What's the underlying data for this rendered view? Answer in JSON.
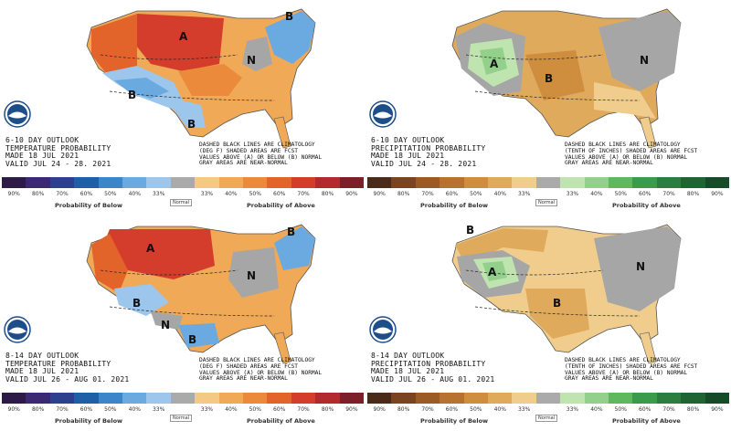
{
  "panels": [
    {
      "id": "temp-6-10",
      "outlook_title": "6-10 DAY OUTLOOK",
      "variable": "TEMPERATURE PROBABILITY",
      "made": "MADE   18 JUL 2021",
      "valid": "VALID   JUL 24 - 28. 2021",
      "notes": [
        "DASHED BLACK LINES ARE CLIMATOLOGY",
        "(DEG F) SHADED AREAS ARE FCST",
        "VALUES ABOVE (A) OR BELOW (B) NORMAL",
        "GRAY AREAS ARE NEAR-NORMAL"
      ],
      "regions": {
        "a1": "A",
        "b1": "B",
        "b2": "B",
        "n1": "N",
        "b3": "B"
      }
    },
    {
      "id": "precip-6-10",
      "outlook_title": "6-10 DAY OUTLOOK",
      "variable": "PRECIPITATION PROBABILITY",
      "made": "MADE   18 JUL 2021",
      "valid": "VALID   JUL 24 - 28. 2021",
      "notes": [
        "DASHED BLACK LINES ARE CLIMATOLOGY",
        "(TENTH OF INCHES) SHADED AREAS ARE FCST",
        "VALUES ABOVE (A) OR BELOW (B) NORMAL",
        "GRAY AREAS ARE NEAR-NORMAL"
      ],
      "regions": {
        "a1": "A",
        "b1": "B",
        "n1": "N"
      }
    },
    {
      "id": "temp-8-14",
      "outlook_title": "8-14 DAY OUTLOOK",
      "variable": "TEMPERATURE PROBABILITY",
      "made": "MADE   18 JUL 2021",
      "valid": "VALID   JUL 26 - AUG 01. 2021",
      "notes": [
        "DASHED BLACK LINES ARE CLIMATOLOGY",
        "(DEG F) SHADED AREAS ARE FCST",
        "VALUES ABOVE (A) OR BELOW (B) NORMAL",
        "GRAY AREAS ARE NEAR-NORMAL"
      ],
      "regions": {
        "a1": "A",
        "b1": "B",
        "b2": "B",
        "n1": "N",
        "n2": "N",
        "b3": "B"
      }
    },
    {
      "id": "precip-8-14",
      "outlook_title": "8-14 DAY OUTLOOK",
      "variable": "PRECIPITATION PROBABILITY",
      "made": "MADE   18 JUL 2021",
      "valid": "VALID   JUL 26 - AUG 01. 2021",
      "notes": [
        "DASHED BLACK LINES ARE CLIMATOLOGY",
        "(TENTH OF INCHES) SHADED AREAS ARE FCST",
        "VALUES ABOVE (A) OR BELOW (B) NORMAL",
        "GRAY AREAS ARE NEAR-NORMAL"
      ],
      "regions": {
        "a1": "A",
        "b1": "B",
        "b2": "B",
        "n1": "N"
      }
    }
  ],
  "legend": {
    "below_caption": "Probability of Below",
    "normal_caption": "Normal",
    "above_caption": "Probability of Above",
    "percent_labels": [
      "90%",
      "80%",
      "70%",
      "60%",
      "50%",
      "40%",
      "33%",
      "33%",
      "40%",
      "50%",
      "60%",
      "70%",
      "80%",
      "90%"
    ],
    "temp_colors": [
      "#2e1a47",
      "#3b2a73",
      "#2d3f8f",
      "#1f5fa8",
      "#3a86c8",
      "#6aaae0",
      "#9cc6ec",
      "#f3c983",
      "#f0a957",
      "#ec8a3c",
      "#e2642b",
      "#d43d2b",
      "#b22a2e",
      "#7c1f29"
    ],
    "precip_colors": [
      "#4a2a18",
      "#7a4420",
      "#9c5a25",
      "#b6722e",
      "#cf8d3e",
      "#e0aa5c",
      "#f0cd8d",
      "#bfe4b0",
      "#93d08b",
      "#5fb85e",
      "#3a9b4a",
      "#2b7e3f",
      "#1f6534",
      "#154b27"
    ],
    "near_normal_color": "#aaaaaa"
  },
  "colors": {
    "temp_above_weak": "#f0a957",
    "temp_above_mid": "#ec8a3c",
    "temp_above_strong": "#d43d2b",
    "temp_below_weak": "#9cc6ec",
    "temp_below_mid": "#6aaae0",
    "precip_above_weak": "#bfe4b0",
    "precip_above_mid": "#93d08b",
    "precip_below_weak": "#f0cd8d",
    "precip_below_mid": "#e0aa5c",
    "near_normal": "#a6a6a6"
  }
}
